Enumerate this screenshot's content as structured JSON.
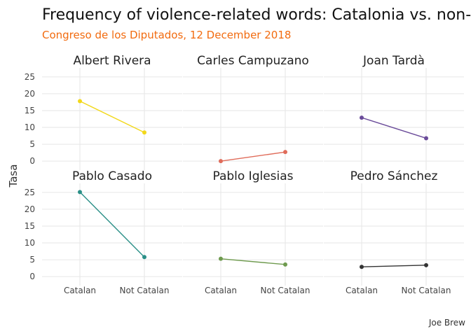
{
  "chart_data": {
    "type": "line",
    "title": "Frequency of violence-related words: Catalonia vs. non-Catalonia",
    "subtitle": "Congreso de los Diputados, 12 December 2018",
    "ylabel": "Tasa",
    "xlabel": "",
    "caption": "Joe Brew",
    "categories": [
      "Catalan",
      "Not Catalan"
    ],
    "ylim": [
      -1,
      26
    ],
    "yticks": [
      0,
      5,
      10,
      15,
      20,
      25
    ],
    "grid": true,
    "panels": [
      {
        "name": "Albert Rivera",
        "color": "#f2d81a",
        "values": [
          17.8,
          8.5
        ]
      },
      {
        "name": "Carles Campuzano",
        "color": "#e06c5a",
        "values": [
          0.0,
          2.7
        ]
      },
      {
        "name": "Joan Tardà",
        "color": "#6b4c9a",
        "values": [
          12.9,
          6.8
        ]
      },
      {
        "name": "Pablo Casado",
        "color": "#2a8f87",
        "values": [
          25.1,
          5.8
        ]
      },
      {
        "name": "Pablo Iglesias",
        "color": "#6e9a4e",
        "values": [
          5.3,
          3.6
        ]
      },
      {
        "name": "Pedro Sánchez",
        "color": "#333333",
        "values": [
          2.9,
          3.4
        ]
      }
    ]
  }
}
